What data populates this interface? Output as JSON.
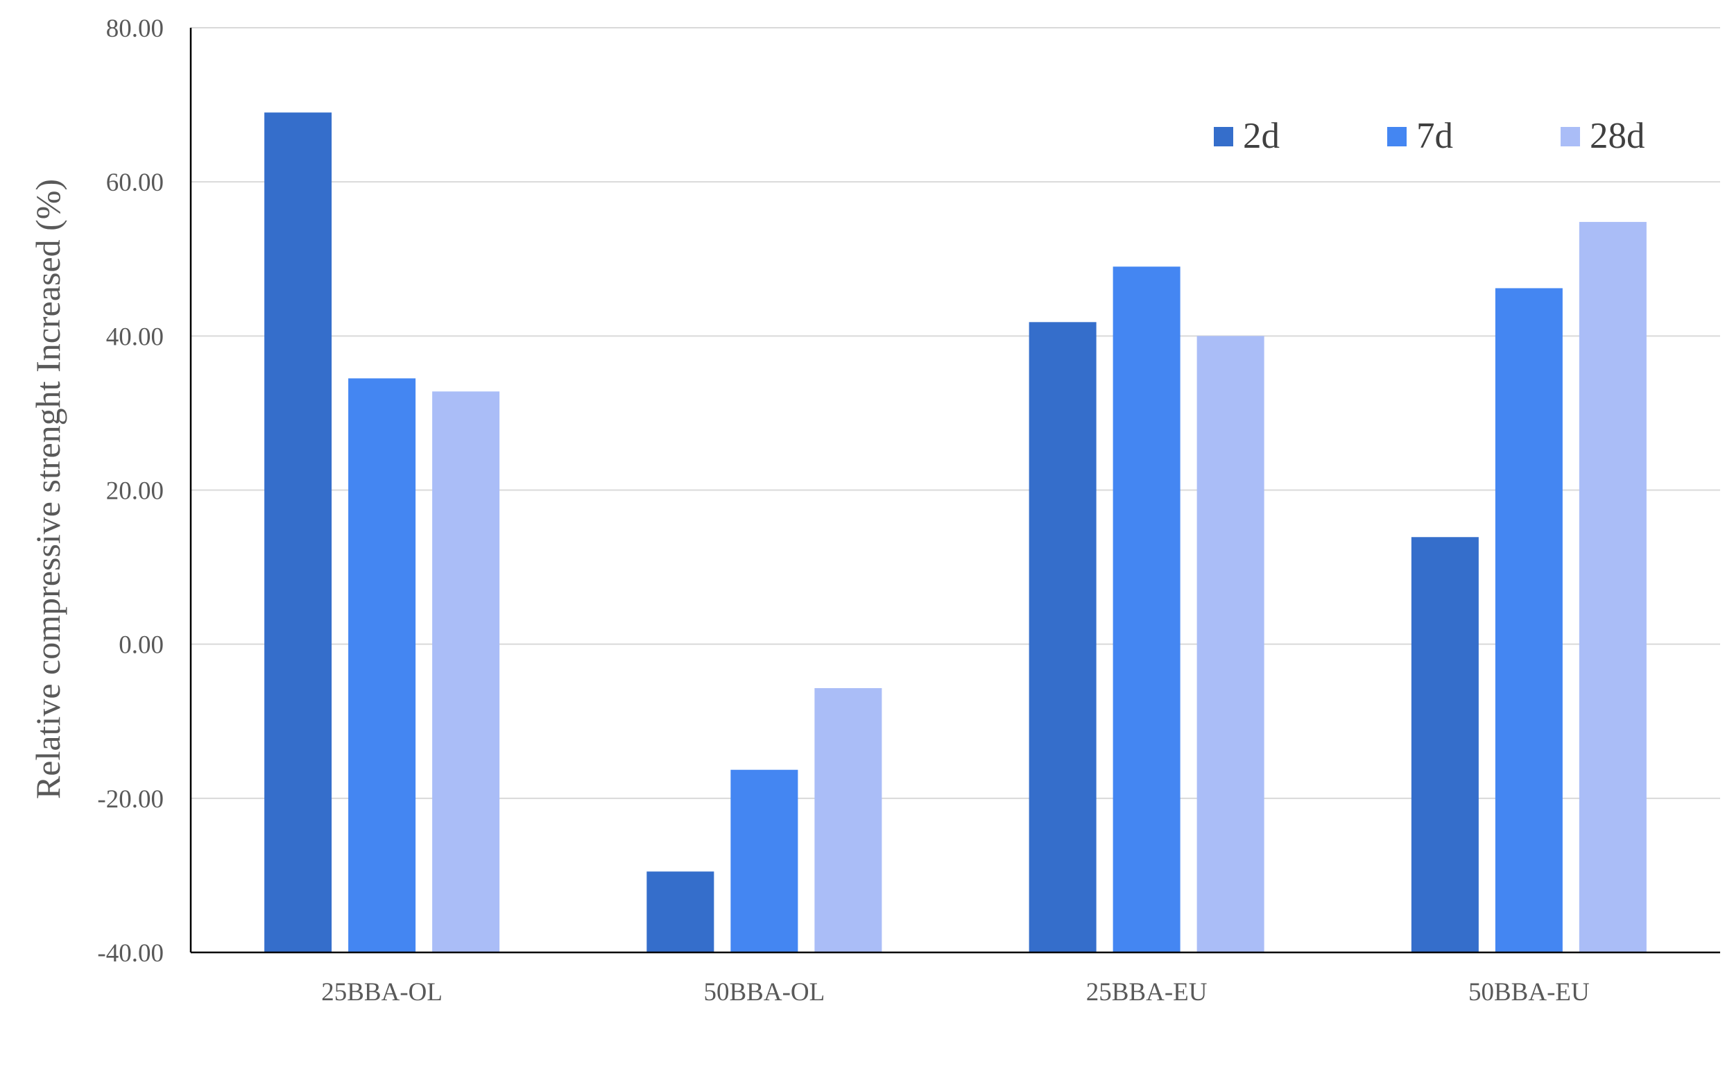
{
  "chart_data": {
    "type": "bar",
    "title": "",
    "xlabel": "",
    "ylabel": "Relative compressive strenght  Increased   (%)",
    "ylim": [
      -40,
      80
    ],
    "yticks": [
      "80.00",
      "60.00",
      "40.00",
      "20.00",
      "0.00",
      "-20.00",
      "-40.00"
    ],
    "grid": true,
    "legend_position": "top-right",
    "categories": [
      "25BBA-OL",
      "50BBA-OL",
      "25BBA-EU",
      "50BBA-EU"
    ],
    "series": [
      {
        "name": "2d",
        "color": "#356ECB",
        "values": [
          69.0,
          -29.5,
          41.8,
          13.9
        ]
      },
      {
        "name": "7d",
        "color": "#4486F2",
        "values": [
          34.5,
          -16.3,
          49.0,
          46.2
        ]
      },
      {
        "name": "28d",
        "color": "#AABDF7",
        "values": [
          32.8,
          -5.7,
          40.0,
          54.8
        ]
      }
    ]
  }
}
